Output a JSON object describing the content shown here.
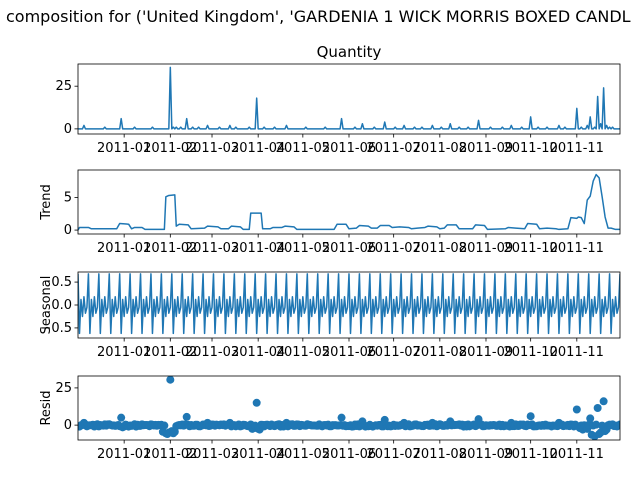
{
  "figure": {
    "suptitle": "composition for ('United Kingdom', 'GARDENIA 1 WICK MORRIS BOXED CANDL"
  },
  "colors": {
    "line": "#1f77b4",
    "axes": "#000000"
  },
  "chart_data": [
    {
      "type": "line",
      "title": "Quantity",
      "ylabel": "",
      "ylim": [
        -3,
        38
      ],
      "yticks": [
        0,
        25
      ],
      "xticks": [
        "2011-01",
        "2011-02",
        "2011-03",
        "2011-04",
        "2011-05",
        "2011-06",
        "2011-07",
        "2011-08",
        "2011-09",
        "2011-10",
        "2011-11"
      ],
      "xlim": [
        "2010-12-01",
        "2011-11-30"
      ],
      "series": [
        {
          "baseline": 0,
          "spikes": [
            [
              "2010-12-05",
              2
            ],
            [
              "2010-12-19",
              1
            ],
            [
              "2010-12-30",
              6
            ],
            [
              "2011-01-08",
              1
            ],
            [
              "2011-01-20",
              1
            ],
            [
              "2011-02-01",
              36
            ],
            [
              "2011-02-03",
              1
            ],
            [
              "2011-02-05",
              1
            ],
            [
              "2011-02-08",
              1
            ],
            [
              "2011-02-12",
              6
            ],
            [
              "2011-02-16",
              1
            ],
            [
              "2011-02-20",
              1
            ],
            [
              "2011-02-26",
              2
            ],
            [
              "2011-03-06",
              1
            ],
            [
              "2011-03-13",
              2
            ],
            [
              "2011-03-17",
              1
            ],
            [
              "2011-03-26",
              1
            ],
            [
              "2011-03-31",
              18
            ],
            [
              "2011-04-05",
              1
            ],
            [
              "2011-04-12",
              1
            ],
            [
              "2011-04-20",
              2
            ],
            [
              "2011-05-03",
              1
            ],
            [
              "2011-05-16",
              1
            ],
            [
              "2011-05-27",
              6
            ],
            [
              "2011-06-05",
              1
            ],
            [
              "2011-06-10",
              3
            ],
            [
              "2011-06-18",
              1
            ],
            [
              "2011-06-25",
              4
            ],
            [
              "2011-07-02",
              1
            ],
            [
              "2011-07-08",
              2
            ],
            [
              "2011-07-15",
              1
            ],
            [
              "2011-07-20",
              1
            ],
            [
              "2011-07-27",
              2
            ],
            [
              "2011-08-02",
              1
            ],
            [
              "2011-08-08",
              3
            ],
            [
              "2011-08-14",
              1
            ],
            [
              "2011-08-20",
              1
            ],
            [
              "2011-08-27",
              5
            ],
            [
              "2011-09-04",
              1
            ],
            [
              "2011-09-12",
              1
            ],
            [
              "2011-09-18",
              2
            ],
            [
              "2011-09-25",
              1
            ],
            [
              "2011-10-01",
              7
            ],
            [
              "2011-10-06",
              1
            ],
            [
              "2011-10-12",
              1
            ],
            [
              "2011-10-20",
              2
            ],
            [
              "2011-10-24",
              1
            ],
            [
              "2011-11-01",
              12
            ],
            [
              "2011-11-04",
              1
            ],
            [
              "2011-11-08",
              2
            ],
            [
              "2011-11-10",
              7
            ],
            [
              "2011-11-13",
              1
            ],
            [
              "2011-11-15",
              19
            ],
            [
              "2011-11-17",
              3
            ],
            [
              "2011-11-19",
              24
            ],
            [
              "2011-11-21",
              2
            ],
            [
              "2011-11-23",
              1
            ],
            [
              "2011-11-25",
              1
            ]
          ]
        }
      ]
    },
    {
      "type": "line",
      "title": "",
      "ylabel": "Trend",
      "ylim": [
        -0.6,
        9.2
      ],
      "yticks": [
        0,
        5
      ],
      "xticks": [
        "2011-01",
        "2011-02",
        "2011-03",
        "2011-04",
        "2011-05",
        "2011-06",
        "2011-07",
        "2011-08",
        "2011-09",
        "2011-10",
        "2011-11"
      ],
      "xlim": [
        "2010-12-01",
        "2011-11-30"
      ],
      "series": [
        {
          "points": [
            [
              "2010-12-01",
              0.0
            ],
            [
              "2010-12-02",
              0.4
            ],
            [
              "2010-12-08",
              0.4
            ],
            [
              "2010-12-10",
              0.2
            ],
            [
              "2010-12-27",
              0.2
            ],
            [
              "2010-12-29",
              1.0
            ],
            [
              "2011-01-04",
              0.9
            ],
            [
              "2011-01-06",
              0.2
            ],
            [
              "2011-01-08",
              0.4
            ],
            [
              "2011-01-13",
              0.4
            ],
            [
              "2011-01-15",
              0.1
            ],
            [
              "2011-01-28",
              0.1
            ],
            [
              "2011-01-29",
              5.1
            ],
            [
              "2011-01-31",
              5.3
            ],
            [
              "2011-02-04",
              5.4
            ],
            [
              "2011-02-05",
              0.6
            ],
            [
              "2011-02-07",
              0.9
            ],
            [
              "2011-02-13",
              0.8
            ],
            [
              "2011-02-15",
              0.2
            ],
            [
              "2011-02-24",
              0.3
            ],
            [
              "2011-02-26",
              0.6
            ],
            [
              "2011-03-05",
              0.5
            ],
            [
              "2011-03-07",
              0.2
            ],
            [
              "2011-03-12",
              0.2
            ],
            [
              "2011-03-14",
              0.6
            ],
            [
              "2011-03-20",
              0.5
            ],
            [
              "2011-03-22",
              0.1
            ],
            [
              "2011-03-26",
              0.1
            ],
            [
              "2011-03-27",
              2.6
            ],
            [
              "2011-04-03",
              2.6
            ],
            [
              "2011-04-04",
              0.2
            ],
            [
              "2011-04-09",
              0.2
            ],
            [
              "2011-04-11",
              0.4
            ],
            [
              "2011-04-17",
              0.4
            ],
            [
              "2011-04-19",
              0.6
            ],
            [
              "2011-04-25",
              0.5
            ],
            [
              "2011-04-27",
              0.1
            ],
            [
              "2011-05-22",
              0.1
            ],
            [
              "2011-05-24",
              0.9
            ],
            [
              "2011-05-30",
              0.9
            ],
            [
              "2011-06-01",
              0.2
            ],
            [
              "2011-06-06",
              0.3
            ],
            [
              "2011-06-08",
              0.7
            ],
            [
              "2011-06-14",
              0.6
            ],
            [
              "2011-06-16",
              0.3
            ],
            [
              "2011-06-20",
              0.3
            ],
            [
              "2011-06-22",
              0.7
            ],
            [
              "2011-06-28",
              0.7
            ],
            [
              "2011-06-30",
              0.4
            ],
            [
              "2011-07-05",
              0.5
            ],
            [
              "2011-07-11",
              0.4
            ],
            [
              "2011-07-13",
              0.2
            ],
            [
              "2011-07-17",
              0.3
            ],
            [
              "2011-07-22",
              0.4
            ],
            [
              "2011-07-24",
              0.6
            ],
            [
              "2011-07-30",
              0.5
            ],
            [
              "2011-08-01",
              0.2
            ],
            [
              "2011-08-04",
              0.3
            ],
            [
              "2011-08-06",
              0.8
            ],
            [
              "2011-08-12",
              0.8
            ],
            [
              "2011-08-14",
              0.2
            ],
            [
              "2011-08-23",
              0.2
            ],
            [
              "2011-08-25",
              0.8
            ],
            [
              "2011-08-31",
              0.7
            ],
            [
              "2011-09-02",
              0.1
            ],
            [
              "2011-09-14",
              0.2
            ],
            [
              "2011-09-16",
              0.4
            ],
            [
              "2011-09-21",
              0.3
            ],
            [
              "2011-09-27",
              0.2
            ],
            [
              "2011-09-29",
              1.0
            ],
            [
              "2011-10-05",
              0.9
            ],
            [
              "2011-10-07",
              0.2
            ],
            [
              "2011-10-12",
              0.3
            ],
            [
              "2011-10-18",
              0.2
            ],
            [
              "2011-10-20",
              0.1
            ],
            [
              "2011-10-26",
              0.2
            ],
            [
              "2011-10-28",
              1.9
            ],
            [
              "2011-11-01",
              1.8
            ],
            [
              "2011-11-02",
              2.0
            ],
            [
              "2011-11-04",
              1.9
            ],
            [
              "2011-11-06",
              1.0
            ],
            [
              "2011-11-08",
              4.6
            ],
            [
              "2011-11-10",
              5.2
            ],
            [
              "2011-11-12",
              7.5
            ],
            [
              "2011-11-14",
              8.5
            ],
            [
              "2011-11-16",
              8.0
            ],
            [
              "2011-11-18",
              5.1
            ],
            [
              "2011-11-20",
              2.0
            ],
            [
              "2011-11-22",
              0.3
            ],
            [
              "2011-11-24",
              0.3
            ],
            [
              "2011-11-27",
              0.1
            ],
            [
              "2011-11-30",
              0.1
            ]
          ]
        }
      ]
    },
    {
      "type": "line",
      "title": "",
      "ylabel": "Seasonal",
      "ylim": [
        -0.72,
        0.72
      ],
      "yticks": [
        -0.5,
        0.0,
        0.5
      ],
      "ytick_labels": [
        "−0.5",
        "0.0",
        "0.5"
      ],
      "xticks": [
        "2011-01",
        "2011-02",
        "2011-03",
        "2011-04",
        "2011-05",
        "2011-06",
        "2011-07",
        "2011-08",
        "2011-09",
        "2011-10",
        "2011-11"
      ],
      "xlim": [
        "2010-12-01",
        "2011-11-30"
      ],
      "series": [
        {
          "period_days": 7,
          "weekly_pattern": [
            0.68,
            -0.62,
            0.12,
            -0.25,
            0.18,
            -0.18,
            -0.05
          ]
        }
      ]
    },
    {
      "type": "scatter",
      "title": "",
      "ylabel": "Resid",
      "ylim": [
        -10,
        33
      ],
      "yticks": [
        0,
        25
      ],
      "xticks": [
        "2011-01",
        "2011-02",
        "2011-03",
        "2011-04",
        "2011-05",
        "2011-06",
        "2011-07",
        "2011-08",
        "2011-09",
        "2011-10",
        "2011-11"
      ],
      "xlim": [
        "2010-12-01",
        "2011-11-30"
      ],
      "series": [
        {
          "baseline_noise": [
            -1.0,
            0.6
          ],
          "outliers": [
            [
              "2010-12-05",
              1.5
            ],
            [
              "2010-12-30",
              5.0
            ],
            [
              "2010-12-31",
              -1.5
            ],
            [
              "2011-01-27",
              -4.5
            ],
            [
              "2011-01-29",
              -5.5
            ],
            [
              "2011-01-30",
              -6.0
            ],
            [
              "2011-01-31",
              -5.0
            ],
            [
              "2011-02-01",
              30.5
            ],
            [
              "2011-02-02",
              -4.0
            ],
            [
              "2011-02-03",
              -5.5
            ],
            [
              "2011-02-04",
              -4.5
            ],
            [
              "2011-02-12",
              5.5
            ],
            [
              "2011-02-26",
              1.5
            ],
            [
              "2011-03-13",
              1.5
            ],
            [
              "2011-03-28",
              -2.5
            ],
            [
              "2011-03-29",
              -2.0
            ],
            [
              "2011-03-31",
              15.0
            ],
            [
              "2011-04-01",
              -2.5
            ],
            [
              "2011-04-02",
              -3.0
            ],
            [
              "2011-04-20",
              1.5
            ],
            [
              "2011-05-27",
              5.0
            ],
            [
              "2011-06-10",
              2.5
            ],
            [
              "2011-06-25",
              3.5
            ],
            [
              "2011-07-08",
              1.5
            ],
            [
              "2011-07-27",
              1.5
            ],
            [
              "2011-08-08",
              2.5
            ],
            [
              "2011-08-27",
              4.0
            ],
            [
              "2011-09-18",
              1.5
            ],
            [
              "2011-10-01",
              6.0
            ],
            [
              "2011-10-20",
              1.5
            ],
            [
              "2011-11-01",
              10.5
            ],
            [
              "2011-11-03",
              -2.0
            ],
            [
              "2011-11-05",
              -3.0
            ],
            [
              "2011-11-08",
              -2.5
            ],
            [
              "2011-11-10",
              4.5
            ],
            [
              "2011-11-11",
              -6.5
            ],
            [
              "2011-11-13",
              -7.5
            ],
            [
              "2011-11-15",
              11.5
            ],
            [
              "2011-11-16",
              -6.0
            ],
            [
              "2011-11-17",
              -5.0
            ],
            [
              "2011-11-19",
              16.0
            ],
            [
              "2011-11-20",
              -4.0
            ],
            [
              "2011-11-21",
              -3.0
            ]
          ]
        }
      ]
    }
  ]
}
